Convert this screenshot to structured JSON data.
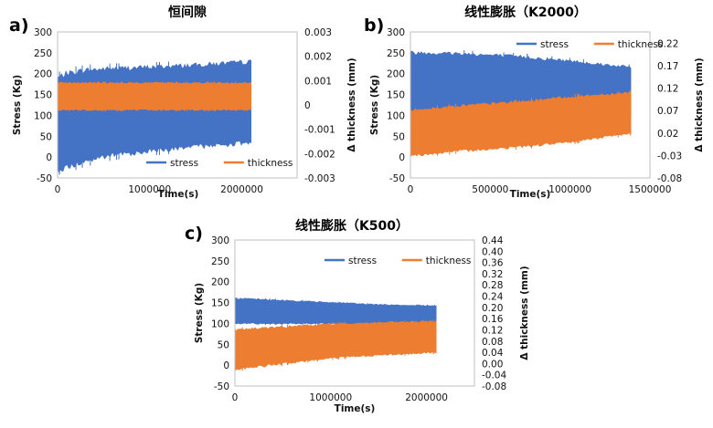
{
  "chart_data": [
    {
      "panel": "a)",
      "type": "area",
      "title": "恒间隙",
      "xlabel": "Time(s)",
      "ylabel": "Stress (Kg)",
      "y2label": "Δ thickness (mm)",
      "xlim": [
        0,
        2600000
      ],
      "ylim": [
        -50,
        300
      ],
      "y2lim": [
        -0.003,
        0.003
      ],
      "xticks": [
        "0",
        "1000000",
        "2000000"
      ],
      "xtick_values": [
        0,
        1000000,
        2000000
      ],
      "yticks": [
        "-50",
        "0",
        "50",
        "100",
        "150",
        "200",
        "250",
        "300"
      ],
      "y2ticks": [
        "-0.003",
        "-0.002",
        "-0.001",
        "0",
        "0.001",
        "0.002",
        "0.003"
      ],
      "legend_placement": "bottom-right",
      "grid": false,
      "series": [
        {
          "name": "stress",
          "color": "#4472C4",
          "axis": "left",
          "x": [
            0,
            100000,
            300000,
            600000,
            1000000,
            1500000,
            2100000
          ],
          "upper": [
            190,
            200,
            208,
            212,
            215,
            220,
            228
          ],
          "lower": [
            -30,
            -25,
            -10,
            5,
            15,
            25,
            35
          ]
        },
        {
          "name": "thickness",
          "color": "#ED7D31",
          "axis": "right",
          "x": [
            0,
            2100000
          ],
          "upper": [
            0.0009,
            0.0009
          ],
          "lower": [
            -0.0002,
            -0.0002
          ]
        }
      ]
    },
    {
      "panel": "b)",
      "type": "area",
      "title": "线性膨胀（K2000）",
      "xlabel": "Time(s)",
      "ylabel": "Stress (Kg)",
      "y2label": "Δ thickness (mm)",
      "xlim": [
        0,
        1500000
      ],
      "ylim": [
        -50,
        300
      ],
      "y2lim": [
        -0.08,
        0.245
      ],
      "xticks": [
        "0",
        "500000",
        "1000000",
        "1500000"
      ],
      "xtick_values": [
        0,
        500000,
        1000000,
        1500000
      ],
      "yticks": [
        "-50",
        "0",
        "50",
        "100",
        "150",
        "200",
        "250",
        "300"
      ],
      "y2ticks": [
        "-0.08",
        "-0.03",
        "0.02",
        "0.07",
        "0.12",
        "0.17",
        "0.22"
      ],
      "legend_placement": "top-right",
      "grid": false,
      "series": [
        {
          "name": "stress",
          "color": "#4472C4",
          "axis": "left",
          "x": [
            0,
            300000,
            700000,
            1000000,
            1380000
          ],
          "upper": [
            250,
            248,
            240,
            230,
            215
          ],
          "lower": [
            100,
            100,
            100,
            100,
            100
          ]
        },
        {
          "name": "thickness",
          "color": "#ED7D31",
          "axis": "right",
          "x": [
            0,
            300000,
            700000,
            1000000,
            1380000
          ],
          "upper": [
            0.07,
            0.08,
            0.09,
            0.1,
            0.11
          ],
          "lower": [
            -0.03,
            -0.02,
            -0.01,
            0.0,
            0.02
          ]
        }
      ]
    },
    {
      "panel": "c)",
      "type": "area",
      "title": "线性膨胀（K500）",
      "xlabel": "Time(s)",
      "ylabel": "Stress (Kg)",
      "y2label": "Δ thickness (mm)",
      "xlim": [
        0,
        2500000
      ],
      "ylim": [
        -50,
        300
      ],
      "y2lim": [
        -0.08,
        0.44
      ],
      "xticks": [
        "0",
        "1000000",
        "2000000"
      ],
      "xtick_values": [
        0,
        1000000,
        2000000
      ],
      "yticks": [
        "-50",
        "0",
        "50",
        "100",
        "150",
        "200",
        "250",
        "300"
      ],
      "y2ticks": [
        "-0.08",
        "-0.04",
        "0.00",
        "0.04",
        "0.08",
        "0.12",
        "0.16",
        "0.20",
        "0.24",
        "0.28",
        "0.32",
        "0.36",
        "0.40",
        "0.44"
      ],
      "legend_placement": "top-right",
      "grid": false,
      "series": [
        {
          "name": "stress",
          "color": "#4472C4",
          "axis": "left",
          "x": [
            0,
            500000,
            1000000,
            1500000,
            2100000
          ],
          "upper": [
            160,
            155,
            150,
            145,
            142
          ],
          "lower": [
            100,
            100,
            100,
            100,
            100
          ]
        },
        {
          "name": "thickness",
          "color": "#ED7D31",
          "axis": "right",
          "x": [
            0,
            500000,
            1000000,
            1500000,
            2100000
          ],
          "upper": [
            0.12,
            0.13,
            0.14,
            0.145,
            0.15
          ],
          "lower": [
            -0.02,
            0.0,
            0.02,
            0.03,
            0.04
          ]
        }
      ]
    }
  ]
}
